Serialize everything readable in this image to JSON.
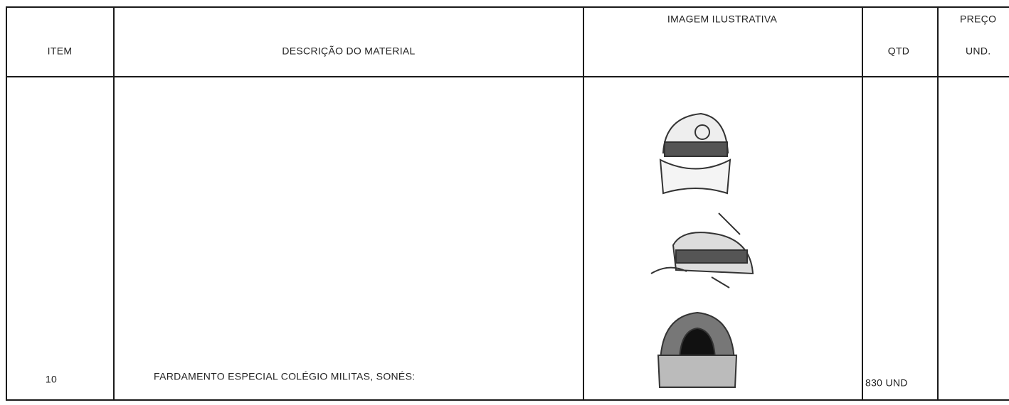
{
  "table": {
    "header": {
      "item": "ITEM",
      "description": "DESCRIÇÃO DO MATERIAL",
      "image": "IMAGEM ILUSTRATIVA",
      "qty": "QTD",
      "price_line1": "PREÇO",
      "price_line2": "UND."
    },
    "rows": [
      {
        "item": "10",
        "description": "FARDAMENTO ESPECIAL COLÉGIO MILITAS, SONÉS:",
        "qty": "830 UND"
      }
    ]
  }
}
